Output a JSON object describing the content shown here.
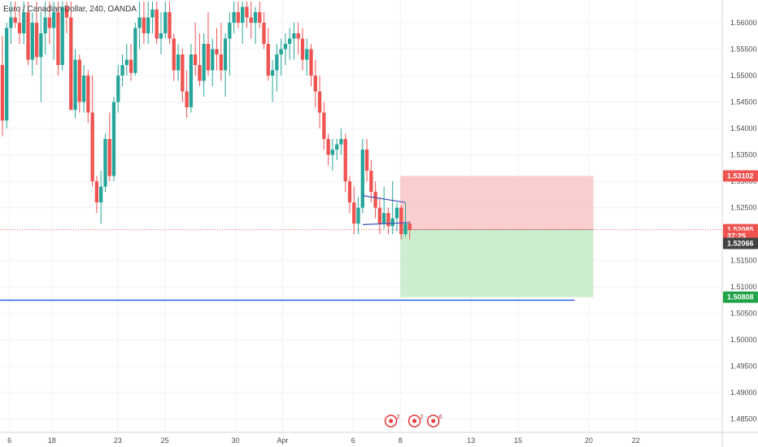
{
  "header": {
    "title": "Euro / Canadian Dollar, 240, OANDA"
  },
  "colors": {
    "up": "#26a69a",
    "down": "#ef5350",
    "grid": "#f0f3fa",
    "stop_zone": "#f9c5c5",
    "target_zone": "#c8ecc9",
    "support_line": "#2962ff",
    "trend_line": "#3f51b5",
    "current_price_tag": "#ef5350",
    "neutral_tag": "#424242",
    "target_tag": "#22a34a"
  },
  "chart_data": {
    "type": "candlestick",
    "title": "Euro / Canadian Dollar, 240, OANDA",
    "ylim": [
      1.4825,
      1.5643
    ],
    "xlim": [
      -1,
      152
    ],
    "y_ticks": [
      "1.56000",
      "1.55500",
      "1.55000",
      "1.54500",
      "1.54000",
      "1.53500",
      "1.53000",
      "1.52500",
      "1.51500",
      "1.51000",
      "1.50500",
      "1.50000",
      "1.49500",
      "1.49000",
      "1.48500"
    ],
    "x_ticks": [
      {
        "label": "6",
        "i": 1
      },
      {
        "label": "18",
        "i": 10
      },
      {
        "label": "23",
        "i": 24
      },
      {
        "label": "25",
        "i": 34
      },
      {
        "label": "30",
        "i": 49
      },
      {
        "label": "Apr",
        "i": 59
      },
      {
        "label": "6",
        "i": 74
      },
      {
        "label": "8",
        "i": 84
      },
      {
        "label": "13",
        "i": 99
      },
      {
        "label": "15",
        "i": 109
      },
      {
        "label": "20",
        "i": 124
      },
      {
        "label": "22",
        "i": 134
      }
    ],
    "candles": [
      [
        1.552,
        1.5575,
        1.5385,
        1.5415
      ],
      [
        1.5415,
        1.56,
        1.54,
        1.559
      ],
      [
        1.559,
        1.564,
        1.556,
        1.561
      ],
      [
        1.561,
        1.564,
        1.559,
        1.56
      ],
      [
        1.56,
        1.563,
        1.556,
        1.558
      ],
      [
        1.558,
        1.564,
        1.556,
        1.562
      ],
      [
        1.562,
        1.564,
        1.552,
        1.553
      ],
      [
        1.553,
        1.562,
        1.55,
        1.56
      ],
      [
        1.56,
        1.564,
        1.552,
        1.5535
      ],
      [
        1.5535,
        1.562,
        1.545,
        1.558
      ],
      [
        1.558,
        1.564,
        1.554,
        1.561
      ],
      [
        1.561,
        1.564,
        1.556,
        1.559
      ],
      [
        1.559,
        1.564,
        1.553,
        1.562
      ],
      [
        1.562,
        1.564,
        1.55,
        1.552
      ],
      [
        1.552,
        1.564,
        1.551,
        1.563
      ],
      [
        1.563,
        1.564,
        1.558,
        1.561
      ],
      [
        1.561,
        1.564,
        1.544,
        1.5435
      ],
      [
        1.5435,
        1.555,
        1.542,
        1.553
      ],
      [
        1.553,
        1.554,
        1.543,
        1.545
      ],
      [
        1.545,
        1.552,
        1.543,
        1.55
      ],
      [
        1.55,
        1.551,
        1.541,
        1.543
      ],
      [
        1.543,
        1.55,
        1.529,
        1.53
      ],
      [
        1.53,
        1.531,
        1.524,
        1.526
      ],
      [
        1.526,
        1.532,
        1.522,
        1.529
      ],
      [
        1.529,
        1.539,
        1.528,
        1.538
      ],
      [
        1.538,
        1.543,
        1.53,
        1.531
      ],
      [
        1.531,
        1.546,
        1.53,
        1.545
      ],
      [
        1.545,
        1.552,
        1.543,
        1.55
      ],
      [
        1.55,
        1.554,
        1.548,
        1.552
      ],
      [
        1.552,
        1.556,
        1.55,
        1.553
      ],
      [
        1.553,
        1.556,
        1.549,
        1.5505
      ],
      [
        1.5505,
        1.56,
        1.55,
        1.559
      ],
      [
        1.559,
        1.564,
        1.555,
        1.561
      ],
      [
        1.561,
        1.564,
        1.556,
        1.558
      ],
      [
        1.558,
        1.564,
        1.556,
        1.561
      ],
      [
        1.561,
        1.564,
        1.558,
        1.5625
      ],
      [
        1.5625,
        1.564,
        1.556,
        1.557
      ],
      [
        1.557,
        1.562,
        1.554,
        1.558
      ],
      [
        1.558,
        1.564,
        1.557,
        1.562
      ],
      [
        1.562,
        1.564,
        1.556,
        1.557
      ],
      [
        1.557,
        1.558,
        1.549,
        1.551
      ],
      [
        1.551,
        1.556,
        1.549,
        1.554
      ],
      [
        1.554,
        1.555,
        1.545,
        1.547
      ],
      [
        1.547,
        1.551,
        1.542,
        1.544
      ],
      [
        1.544,
        1.556,
        1.543,
        1.554
      ],
      [
        1.554,
        1.56,
        1.55,
        1.552
      ],
      [
        1.552,
        1.558,
        1.548,
        1.549
      ],
      [
        1.549,
        1.558,
        1.546,
        1.556
      ],
      [
        1.556,
        1.562,
        1.55,
        1.551
      ],
      [
        1.551,
        1.557,
        1.548,
        1.555
      ],
      [
        1.555,
        1.559,
        1.551,
        1.554
      ],
      [
        1.554,
        1.56,
        1.549,
        1.551
      ],
      [
        1.551,
        1.558,
        1.546,
        1.557
      ],
      [
        1.557,
        1.562,
        1.55,
        1.56
      ],
      [
        1.56,
        1.564,
        1.558,
        1.562
      ],
      [
        1.562,
        1.564,
        1.559,
        1.56
      ],
      [
        1.56,
        1.564,
        1.556,
        1.563
      ],
      [
        1.563,
        1.564,
        1.559,
        1.561
      ],
      [
        1.561,
        1.564,
        1.557,
        1.56
      ],
      [
        1.56,
        1.563,
        1.556,
        1.562
      ],
      [
        1.562,
        1.564,
        1.559,
        1.56
      ],
      [
        1.56,
        1.562,
        1.555,
        1.556
      ],
      [
        1.556,
        1.559,
        1.549,
        1.55
      ],
      [
        1.55,
        1.553,
        1.545,
        1.551
      ],
      [
        1.551,
        1.556,
        1.547,
        1.554
      ],
      [
        1.554,
        1.557,
        1.55,
        1.555
      ],
      [
        1.555,
        1.558,
        1.552,
        1.556
      ],
      [
        1.556,
        1.559,
        1.553,
        1.557
      ],
      [
        1.557,
        1.56,
        1.553,
        1.558
      ],
      [
        1.558,
        1.56,
        1.554,
        1.557
      ],
      [
        1.557,
        1.559,
        1.551,
        1.553
      ],
      [
        1.553,
        1.557,
        1.55,
        1.555
      ],
      [
        1.555,
        1.556,
        1.548,
        1.55
      ],
      [
        1.55,
        1.553,
        1.544,
        1.547
      ],
      [
        1.547,
        1.55,
        1.54,
        1.543
      ],
      [
        1.543,
        1.545,
        1.536,
        1.538
      ],
      [
        1.538,
        1.539,
        1.533,
        1.535
      ],
      [
        1.535,
        1.538,
        1.532,
        1.536
      ],
      [
        1.536,
        1.538,
        1.534,
        1.537
      ],
      [
        1.537,
        1.54,
        1.535,
        1.538
      ],
      [
        1.538,
        1.539,
        1.528,
        1.53
      ],
      [
        1.53,
        1.531,
        1.524,
        1.526
      ],
      [
        1.526,
        1.529,
        1.52,
        1.522
      ],
      [
        1.522,
        1.527,
        1.52,
        1.525
      ],
      [
        1.525,
        1.538,
        1.524,
        1.536
      ],
      [
        1.536,
        1.538,
        1.53,
        1.532
      ],
      [
        1.532,
        1.534,
        1.526,
        1.528
      ],
      [
        1.528,
        1.53,
        1.523,
        1.525
      ],
      [
        1.525,
        1.527,
        1.52,
        1.522
      ],
      [
        1.522,
        1.529,
        1.521,
        1.524
      ],
      [
        1.524,
        1.525,
        1.52,
        1.5215
      ],
      [
        1.5215,
        1.53,
        1.52,
        1.523
      ],
      [
        1.523,
        1.526,
        1.5205,
        1.525
      ],
      [
        1.525,
        1.5255,
        1.519,
        1.52
      ],
      [
        1.52,
        1.526,
        1.5195,
        1.522
      ],
      [
        1.522,
        1.5225,
        1.519,
        1.5208
      ]
    ],
    "candle_index_map": "sparse",
    "trade_zone": {
      "entry": 1.52085,
      "stop": 1.53102,
      "target": 1.50808,
      "i_start": 84,
      "i_end": 125
    },
    "support_line": {
      "price": 1.5075,
      "i_start": -1,
      "i_end": 121
    },
    "trend_lines": [
      {
        "i1": 76,
        "p1": 1.5273,
        "i2": 85,
        "p2": 1.526
      },
      {
        "i1": 76,
        "p1": 1.5218,
        "i2": 86,
        "p2": 1.5222
      }
    ],
    "price_tags": [
      {
        "label": "1.53102",
        "price": 1.53102,
        "color": "current_price_tag"
      },
      {
        "label": "1.52085",
        "price": 1.52085,
        "color": "current_price_tag"
      },
      {
        "label": "37:25",
        "price": 1.5196,
        "color": "current_price_tag"
      },
      {
        "label": "1.52066",
        "price": 1.51825,
        "color": "neutral_tag"
      },
      {
        "label": "1.50808",
        "price": 1.50808,
        "color": "target_tag"
      }
    ],
    "events": [
      {
        "i": 82,
        "count": "2"
      },
      {
        "i": 87,
        "count": "2"
      },
      {
        "i": 91,
        "count": "6"
      }
    ]
  }
}
